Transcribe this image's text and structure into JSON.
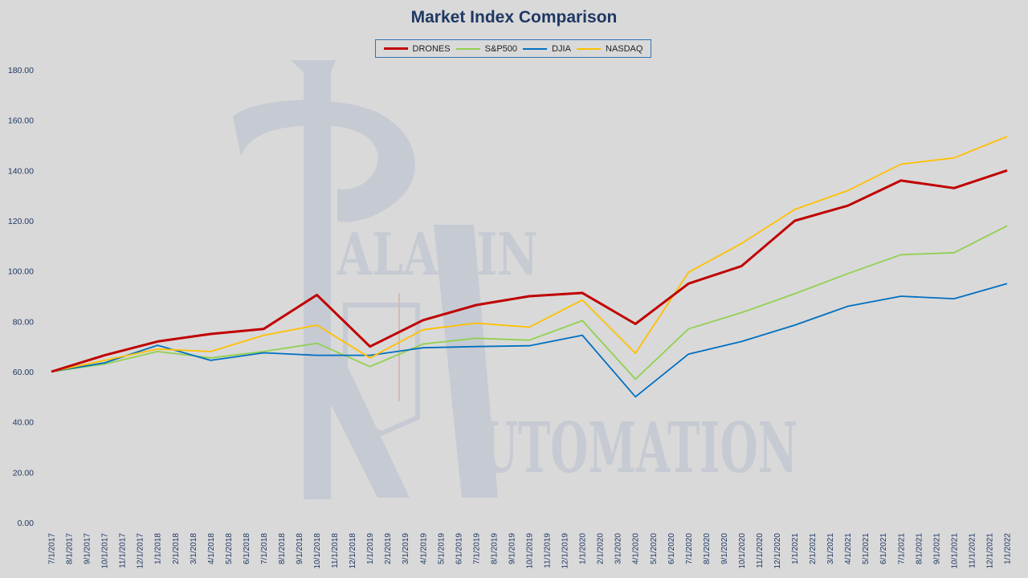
{
  "chart_data": {
    "type": "line",
    "title": "Market Index Comparison",
    "xlabel": "",
    "ylabel": "",
    "ylim": [
      0,
      180
    ],
    "yticks": [
      "0.00",
      "20.00",
      "40.00",
      "60.00",
      "80.00",
      "100.00",
      "120.00",
      "140.00",
      "160.00",
      "180.00"
    ],
    "grid": false,
    "legend_position": "top-center",
    "categories": [
      "7/1/2017",
      "8/1/2017",
      "9/1/2017",
      "10/1/2017",
      "11/1/2017",
      "12/1/2017",
      "1/1/2018",
      "2/1/2018",
      "3/1/2018",
      "4/1/2018",
      "5/1/2018",
      "6/1/2018",
      "7/1/2018",
      "8/1/2018",
      "9/1/2018",
      "10/1/2018",
      "11/1/2018",
      "12/1/2018",
      "1/1/2019",
      "2/1/2019",
      "3/1/2019",
      "4/1/2019",
      "5/1/2019",
      "6/1/2019",
      "7/1/2019",
      "8/1/2019",
      "9/1/2019",
      "10/1/2019",
      "11/1/2019",
      "12/1/2019",
      "1/1/2020",
      "2/1/2020",
      "3/1/2020",
      "4/1/2020",
      "5/1/2020",
      "6/1/2020",
      "7/1/2020",
      "8/1/2020",
      "9/1/2020",
      "10/1/2020",
      "11/1/2020",
      "12/1/2020",
      "1/1/2021",
      "2/1/2021",
      "3/1/2021",
      "4/1/2021",
      "5/1/2021",
      "6/1/2021",
      "7/1/2021",
      "8/1/2021",
      "9/1/2021",
      "10/1/2021",
      "11/1/2021",
      "12/1/2021",
      "1/1/2022"
    ],
    "series": [
      {
        "name": "DRONES",
        "color": "#c00000",
        "points": [
          [
            0,
            60
          ],
          [
            3,
            66.5
          ],
          [
            6,
            72
          ],
          [
            9,
            75
          ],
          [
            12,
            77
          ],
          [
            15,
            90.5
          ],
          [
            18,
            70
          ],
          [
            21,
            80.5
          ],
          [
            24,
            86.5
          ],
          [
            27,
            90
          ],
          [
            30,
            91.3
          ],
          [
            33,
            79
          ],
          [
            36,
            95
          ],
          [
            39,
            102
          ],
          [
            42,
            120
          ],
          [
            45,
            126
          ],
          [
            48,
            136
          ],
          [
            51,
            133
          ],
          [
            54,
            140
          ]
        ]
      },
      {
        "name": "S&P500",
        "color": "#92d050",
        "points": [
          [
            0,
            60
          ],
          [
            3,
            63
          ],
          [
            6,
            68
          ],
          [
            9,
            65.5
          ],
          [
            12,
            68
          ],
          [
            15,
            71.3
          ],
          [
            18,
            62
          ],
          [
            21,
            71
          ],
          [
            24,
            73.3
          ],
          [
            27,
            72.5
          ],
          [
            30,
            80.3
          ],
          [
            33,
            57
          ],
          [
            36,
            77
          ],
          [
            39,
            83.5
          ],
          [
            42,
            91
          ],
          [
            45,
            99
          ],
          [
            48,
            106.5
          ],
          [
            51,
            107.3
          ],
          [
            54,
            118
          ]
        ]
      },
      {
        "name": "DJIA",
        "color": "#0070c0",
        "points": [
          [
            0,
            60
          ],
          [
            3,
            63.5
          ],
          [
            6,
            70.5
          ],
          [
            9,
            64.5
          ],
          [
            12,
            67.5
          ],
          [
            15,
            66.5
          ],
          [
            18,
            66.5
          ],
          [
            21,
            69.5
          ],
          [
            24,
            70
          ],
          [
            27,
            70.3
          ],
          [
            30,
            74.5
          ],
          [
            33,
            50
          ],
          [
            36,
            67
          ],
          [
            39,
            72
          ],
          [
            42,
            78.5
          ],
          [
            45,
            86
          ],
          [
            48,
            90
          ],
          [
            51,
            89
          ],
          [
            54,
            95
          ]
        ]
      },
      {
        "name": "NASDAQ",
        "color": "#ffc000",
        "points": [
          [
            0,
            60
          ],
          [
            3,
            64.5
          ],
          [
            6,
            69
          ],
          [
            9,
            68
          ],
          [
            12,
            74.5
          ],
          [
            15,
            78.5
          ],
          [
            18,
            65.5
          ],
          [
            21,
            76.7
          ],
          [
            24,
            79.3
          ],
          [
            27,
            77.7
          ],
          [
            30,
            88.5
          ],
          [
            33,
            67.3
          ],
          [
            36,
            99.5
          ],
          [
            39,
            111
          ],
          [
            42,
            124.5
          ],
          [
            45,
            132
          ],
          [
            48,
            142.5
          ],
          [
            51,
            145
          ],
          [
            54,
            153.5
          ]
        ]
      }
    ]
  },
  "watermark": {
    "line1": "ALADIN",
    "line2": "UTOMATION",
    "color": "#c3c8d2"
  }
}
